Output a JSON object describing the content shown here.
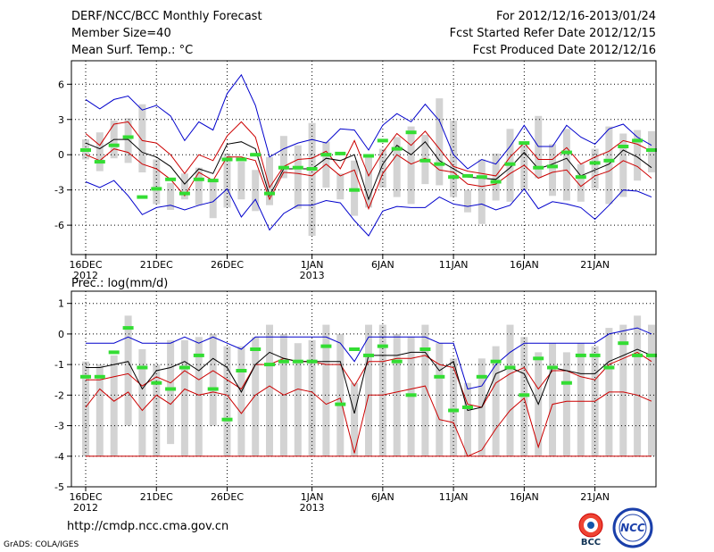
{
  "header": {
    "title": "DERF/NCC/BCC Monthly Forecast",
    "member_size": "Member Size=40",
    "variable": "Mean Surf. Temp.: °C",
    "period": "For 2012/12/16-2013/01/24",
    "started": "Fcst Started Refer Date 2012/12/15",
    "produced": "Fcst Produced Date 2012/12/16"
  },
  "footer": {
    "url": "http://cmdp.ncc.cma.gov.cn",
    "credit": "GrADS: COLA/IGES",
    "logo_bcc": "BCC",
    "logo_ncc": "NCC"
  },
  "colors": {
    "max_line": "#0000cc",
    "upper_line": "#cc0000",
    "mean_line": "#000000",
    "median_mark": "#33dd33",
    "spread_bar": "#d3d3d3",
    "grid": "#000000"
  },
  "chart_data": [
    {
      "type": "line",
      "title": "Mean Surf. Temp.: °C",
      "x_ticks": [
        {
          "day": 0,
          "label": "16DEC",
          "sub": "2012"
        },
        {
          "day": 5,
          "label": "21DEC",
          "sub": ""
        },
        {
          "day": 10,
          "label": "26DEC",
          "sub": ""
        },
        {
          "day": 16,
          "label": "1JAN",
          "sub": "2013"
        },
        {
          "day": 21,
          "label": "6JAN",
          "sub": ""
        },
        {
          "day": 26,
          "label": "11JAN",
          "sub": ""
        },
        {
          "day": 31,
          "label": "16JAN",
          "sub": ""
        },
        {
          "day": 36,
          "label": "21JAN",
          "sub": ""
        }
      ],
      "ylim": [
        -8.5,
        8
      ],
      "yticks": [
        -6,
        -3,
        0,
        3,
        6
      ],
      "ytick_labels": [
        "-6",
        "-3",
        "0",
        "3",
        "6"
      ],
      "series": [
        {
          "name": "max",
          "values": [
            4.7,
            3.9,
            4.7,
            5.0,
            3.8,
            4.2,
            3.3,
            1.2,
            2.8,
            2.1,
            5.2,
            6.8,
            4.2,
            -0.2,
            0.5,
            1.0,
            1.3,
            1.0,
            2.2,
            2.1,
            0.4,
            2.5,
            3.5,
            2.8,
            4.3,
            2.9,
            0.0,
            -1.2,
            -0.4,
            -0.8,
            0.7,
            2.5,
            0.7,
            0.7,
            2.5,
            1.5,
            0.9,
            2.2,
            2.6,
            1.5,
            0.8
          ]
        },
        {
          "name": "upper",
          "values": [
            1.8,
            0.8,
            2.6,
            2.8,
            1.2,
            1.0,
            0.0,
            -1.6,
            0.0,
            -0.5,
            1.6,
            2.8,
            1.5,
            -2.8,
            -1.0,
            -0.4,
            -0.3,
            0.3,
            -1.2,
            1.2,
            -1.8,
            0.2,
            1.8,
            0.8,
            2.0,
            0.5,
            -1.0,
            -1.4,
            -1.6,
            -1.8,
            -0.2,
            1.0,
            -0.4,
            -0.4,
            0.6,
            -0.8,
            -0.2,
            0.3,
            1.2,
            0.9,
            0.3
          ]
        },
        {
          "name": "mean",
          "values": [
            1.0,
            0.5,
            1.3,
            1.3,
            0.2,
            -0.2,
            -1.0,
            -2.5,
            -1.2,
            -1.6,
            0.9,
            1.1,
            0.5,
            -3.5,
            -1.2,
            -1.2,
            -1.2,
            -0.3,
            -0.5,
            0.0,
            -3.8,
            -0.8,
            0.8,
            0.0,
            1.1,
            -0.5,
            -1.2,
            -1.9,
            -2.0,
            -2.1,
            -1.1,
            0.2,
            -1.2,
            -0.8,
            -0.3,
            -1.8,
            -1.3,
            -0.8,
            0.4,
            -0.2,
            -1.1
          ]
        },
        {
          "name": "lower",
          "values": [
            0.0,
            -0.5,
            0.5,
            0.2,
            -0.8,
            -1.2,
            -2.1,
            -3.5,
            -1.5,
            -2.2,
            -0.2,
            -0.2,
            -0.5,
            -3.8,
            -1.5,
            -1.6,
            -1.8,
            -0.8,
            -1.8,
            -1.3,
            -4.6,
            -1.6,
            0.0,
            -0.8,
            -0.3,
            -1.3,
            -1.5,
            -2.5,
            -2.7,
            -2.5,
            -1.6,
            -0.9,
            -2.0,
            -1.5,
            -1.3,
            -2.7,
            -1.8,
            -1.4,
            -0.5,
            -1.0,
            -2.0
          ]
        },
        {
          "name": "min",
          "values": [
            -2.3,
            -2.8,
            -2.2,
            -3.5,
            -5.1,
            -4.5,
            -4.3,
            -4.7,
            -4.3,
            -4.0,
            -2.9,
            -5.3,
            -3.8,
            -6.4,
            -5.0,
            -4.3,
            -4.3,
            -3.9,
            -4.1,
            -5.6,
            -6.9,
            -4.8,
            -4.4,
            -4.5,
            -4.5,
            -3.6,
            -4.2,
            -4.4,
            -4.2,
            -4.7,
            -4.3,
            -2.9,
            -4.6,
            -4.0,
            -4.2,
            -4.5,
            -5.5,
            -4.3,
            -3.0,
            -3.1,
            -3.6
          ]
        },
        {
          "name": "median",
          "values": [
            0.4,
            -0.6,
            0.8,
            1.5,
            -3.6,
            -2.9,
            -2.1,
            -3.3,
            -2.1,
            -2.2,
            -0.4,
            -0.4,
            0.0,
            -3.3,
            -1.1,
            -1.1,
            -1.2,
            0.0,
            0.1,
            -3.0,
            -0.1,
            1.2,
            0.5,
            1.9,
            -0.5,
            -0.8,
            -1.9,
            -1.8,
            -1.9,
            -2.3,
            -0.8,
            1.0,
            -1.1,
            -1.0,
            0.2,
            -1.9,
            -0.7,
            -0.5,
            0.7,
            1.2,
            0.4
          ]
        }
      ],
      "spread_bars": [
        [
          -0.4,
          1.3
        ],
        [
          -1.4,
          1.9
        ],
        [
          -0.3,
          2.9
        ],
        [
          -0.7,
          3.1
        ],
        [
          -1.5,
          4.3
        ],
        [
          -4.2,
          -0.4
        ],
        [
          -4.7,
          -2.4
        ],
        [
          -3.8,
          -1.6
        ],
        [
          -4.3,
          -1.1
        ],
        [
          -5.4,
          -2.2
        ],
        [
          -4.5,
          0.1
        ],
        [
          -3.8,
          -0.6
        ],
        [
          -4.8,
          -1.3
        ],
        [
          -4.3,
          -0.2
        ],
        [
          -2.0,
          1.6
        ],
        [
          -4.6,
          0.8
        ],
        [
          -6.9,
          2.7
        ],
        [
          -2.8,
          1.1
        ],
        [
          -3.8,
          -1.6
        ],
        [
          -5.2,
          -0.5
        ],
        [
          -4.5,
          -0.1
        ],
        [
          -2.8,
          0.5
        ],
        [
          -3.6,
          1.5
        ],
        [
          -4.2,
          2.4
        ],
        [
          -2.5,
          1.7
        ],
        [
          -2.6,
          4.8
        ],
        [
          -3.6,
          2.9
        ],
        [
          -4.9,
          -3.0
        ],
        [
          -5.9,
          -0.4
        ],
        [
          -3.9,
          0.1
        ],
        [
          -4.0,
          2.2
        ],
        [
          -3.0,
          1.1
        ],
        [
          -2.0,
          3.3
        ],
        [
          -3.5,
          0.9
        ],
        [
          -3.9,
          2.2
        ],
        [
          -4.0,
          -0.8
        ],
        [
          -2.9,
          0.5
        ],
        [
          -4.2,
          2.4
        ],
        [
          -3.6,
          1.8
        ],
        [
          -2.2,
          2.1
        ],
        [
          -1.5,
          2.0
        ]
      ]
    },
    {
      "type": "line",
      "title": "Prec.: log(mm/d)",
      "x_ticks": [
        {
          "day": 0,
          "label": "16DEC",
          "sub": "2012"
        },
        {
          "day": 5,
          "label": "21DEC",
          "sub": ""
        },
        {
          "day": 10,
          "label": "26DEC",
          "sub": ""
        },
        {
          "day": 16,
          "label": "1JAN",
          "sub": "2013"
        },
        {
          "day": 21,
          "label": "6JAN",
          "sub": ""
        },
        {
          "day": 26,
          "label": "11JAN",
          "sub": ""
        },
        {
          "day": 31,
          "label": "16JAN",
          "sub": ""
        },
        {
          "day": 36,
          "label": "21JAN",
          "sub": ""
        }
      ],
      "ylim": [
        -5,
        1.4
      ],
      "yticks": [
        -5,
        -4,
        -3,
        -2,
        -1,
        0,
        1
      ],
      "ytick_labels": [
        "-5",
        "-4",
        "-3",
        "-2",
        "-1",
        "0",
        "1"
      ],
      "series": [
        {
          "name": "max",
          "values": [
            -0.3,
            -0.3,
            -0.3,
            -0.1,
            -0.3,
            -0.3,
            -0.3,
            -0.1,
            -0.3,
            -0.1,
            -0.3,
            -0.5,
            -0.1,
            -0.1,
            -0.1,
            -0.1,
            -0.1,
            -0.1,
            -0.3,
            -0.9,
            -0.1,
            -0.1,
            -0.1,
            -0.1,
            -0.1,
            -0.3,
            -0.3,
            -1.8,
            -1.7,
            -1.0,
            -0.6,
            -0.3,
            -0.3,
            -0.3,
            -0.3,
            -0.3,
            -0.3,
            0.0,
            0.1,
            0.2,
            0.0
          ]
        },
        {
          "name": "upper",
          "values": [
            -1.5,
            -1.5,
            -1.4,
            -1.3,
            -1.7,
            -1.4,
            -1.6,
            -1.2,
            -1.5,
            -1.2,
            -1.5,
            -1.8,
            -1.0,
            -1.0,
            -0.8,
            -0.9,
            -0.9,
            -1.0,
            -1.0,
            -1.7,
            -0.9,
            -0.9,
            -0.8,
            -0.8,
            -0.7,
            -1.0,
            -1.1,
            -2.3,
            -2.4,
            -1.6,
            -1.3,
            -1.1,
            -1.8,
            -1.2,
            -1.2,
            -1.4,
            -1.5,
            -1.0,
            -0.8,
            -0.6,
            -0.9
          ]
        },
        {
          "name": "mean",
          "values": [
            -1.1,
            -1.1,
            -1.0,
            -0.9,
            -1.8,
            -1.2,
            -1.1,
            -0.9,
            -1.2,
            -0.8,
            -1.1,
            -1.9,
            -1.0,
            -0.6,
            -0.8,
            -0.9,
            -0.9,
            -0.9,
            -0.9,
            -2.6,
            -0.7,
            -0.7,
            -0.7,
            -0.6,
            -0.6,
            -1.2,
            -0.9,
            -2.5,
            -2.4,
            -1.3,
            -1.1,
            -1.3,
            -2.3,
            -1.1,
            -1.2,
            -1.3,
            -1.3,
            -0.9,
            -0.7,
            -0.5,
            -0.7
          ]
        },
        {
          "name": "lower",
          "values": [
            -2.4,
            -1.8,
            -2.2,
            -1.9,
            -2.5,
            -2.0,
            -2.3,
            -1.8,
            -2.0,
            -1.9,
            -2.0,
            -2.6,
            -2.0,
            -1.7,
            -2.0,
            -1.8,
            -1.9,
            -2.3,
            -2.1,
            -3.9,
            -2.0,
            -2.0,
            -1.9,
            -1.8,
            -1.7,
            -2.8,
            -2.9,
            -4.0,
            -3.8,
            -3.1,
            -2.5,
            -2.1,
            -3.7,
            -2.3,
            -2.2,
            -2.2,
            -2.2,
            -1.9,
            -1.9,
            -2.0,
            -2.2
          ]
        },
        {
          "name": "min",
          "values": [
            -4,
            -4,
            -4,
            -4,
            -4,
            -4,
            -4,
            -4,
            -4,
            -4,
            -4,
            -4,
            -4,
            -4,
            -4,
            -4,
            -4,
            -4,
            -4,
            -4,
            -4,
            -4,
            -4,
            -4,
            -4,
            -4,
            -4,
            -4,
            -4,
            -4,
            -4,
            -4,
            -4,
            -4,
            -4,
            -4,
            -4,
            -4,
            -4,
            -4,
            -4
          ]
        },
        {
          "name": "median",
          "values": [
            -1.4,
            -1.4,
            -0.6,
            0.2,
            -1.1,
            -1.6,
            -1.8,
            -1.1,
            -0.7,
            -1.8,
            -2.8,
            -1.2,
            -0.5,
            -1.0,
            -0.9,
            -0.9,
            -0.9,
            -0.4,
            -2.3,
            -0.5,
            -0.7,
            -0.4,
            -0.9,
            -2.0,
            -0.5,
            -1.4,
            -2.5,
            -2.4,
            -1.4,
            -0.9,
            -1.1,
            -2.0,
            -0.8,
            -1.1,
            -1.6,
            -0.7,
            -0.7,
            -1.1,
            -0.3,
            -0.7,
            -0.7
          ]
        },
        {
          "name": "spread_bottom",
          "values": [
            -4.0,
            -4.0,
            -4.0,
            -3.0,
            -4.0,
            -4.0,
            -3.6,
            -4.0,
            -4.0,
            -3.0,
            -4.0,
            -4.0,
            -4.0,
            -4.0,
            -4.0,
            -4.0,
            -4.0,
            -4.0,
            -4.0,
            -4.0,
            -4.0,
            -4.0,
            -4.0,
            -4.0,
            -4.0,
            -4.0,
            -4.0,
            -4.0,
            -4.0,
            -4.0,
            -4.0,
            -4.0,
            -4.0,
            -4.0,
            -4.0,
            -4.0,
            -4.0,
            -4.0,
            -4.0,
            -4.0,
            -4.0
          ]
        },
        {
          "name": "spread_top",
          "values": [
            -0.9,
            -1.0,
            -0.7,
            0.6,
            -0.5,
            -1.0,
            -0.2,
            -0.2,
            -0.1,
            0.0,
            -0.4,
            -0.4,
            -0.1,
            0.3,
            0.0,
            -0.3,
            -0.2,
            0.3,
            0.0,
            -1.6,
            0.3,
            0.3,
            0.0,
            -0.1,
            0.3,
            -0.3,
            -0.8,
            -1.6,
            -0.8,
            -0.4,
            0.3,
            -0.1,
            -0.6,
            -0.3,
            -0.6,
            -0.3,
            -0.4,
            0.2,
            0.3,
            0.6,
            0.3
          ]
        }
      ]
    }
  ]
}
